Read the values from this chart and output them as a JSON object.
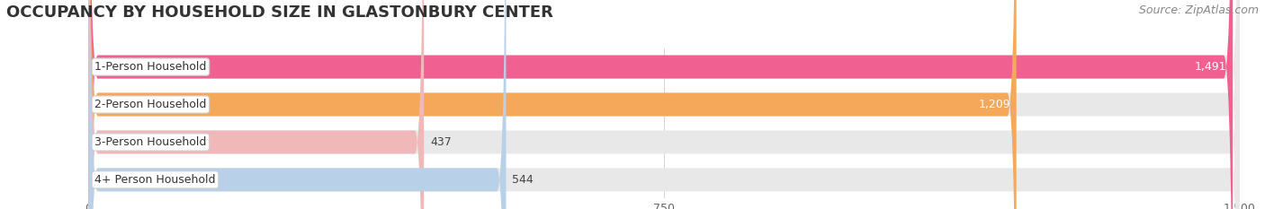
{
  "title": "OCCUPANCY BY HOUSEHOLD SIZE IN GLASTONBURY CENTER",
  "source": "Source: ZipAtlas.com",
  "categories": [
    "1-Person Household",
    "2-Person Household",
    "3-Person Household",
    "4+ Person Household"
  ],
  "values": [
    1491,
    1209,
    437,
    544
  ],
  "bar_colors": [
    "#f06090",
    "#f5a85a",
    "#f0b8b8",
    "#b8d0e8"
  ],
  "xlim": [
    0,
    1500
  ],
  "xticks": [
    0,
    750,
    1500
  ],
  "background_color": "#ffffff",
  "bar_bg_color": "#e8e8e8",
  "title_fontsize": 13,
  "source_fontsize": 9,
  "label_fontsize": 9,
  "value_fontsize": 9
}
